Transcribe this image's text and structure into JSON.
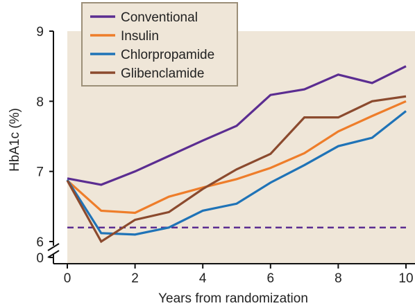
{
  "chart_data": {
    "type": "line",
    "xlabel": "Years from randomization",
    "ylabel": "HbA1c (%)",
    "xlim": [
      0,
      10
    ],
    "ylim": [
      6,
      9
    ],
    "x_ticks": [
      "0",
      "2",
      "4",
      "6",
      "8",
      "10"
    ],
    "y_ticks": [
      "6",
      "7",
      "8",
      "9"
    ],
    "broken_axis_label": "0",
    "background_color": "#efe6d8",
    "legend_position": "top-left",
    "x": [
      0,
      1,
      2,
      3,
      4,
      5,
      6,
      7,
      8,
      9,
      10
    ],
    "series": [
      {
        "name": "Conventional",
        "color": "#5b2d91",
        "values": [
          6.9,
          6.81,
          7.0,
          7.22,
          7.44,
          7.65,
          8.09,
          8.17,
          8.38,
          8.26,
          8.5
        ]
      },
      {
        "name": "Insulin",
        "color": "#ee7d2a",
        "values": [
          6.87,
          6.44,
          6.41,
          6.64,
          6.77,
          6.89,
          7.05,
          7.26,
          7.57,
          7.79,
          8.0
        ]
      },
      {
        "name": "Chlorpropamide",
        "color": "#1f73b7",
        "values": [
          6.88,
          6.12,
          6.1,
          6.2,
          6.44,
          6.54,
          6.84,
          7.09,
          7.36,
          7.48,
          7.86
        ]
      },
      {
        "name": "Glibenclamide",
        "color": "#8b4a2e",
        "values": [
          6.87,
          6.0,
          6.31,
          6.42,
          6.75,
          7.03,
          7.25,
          7.77,
          7.77,
          8.0,
          8.07
        ]
      }
    ],
    "reference_line": {
      "value": 6.2,
      "color": "#5b2d91",
      "style": "dashed"
    }
  }
}
